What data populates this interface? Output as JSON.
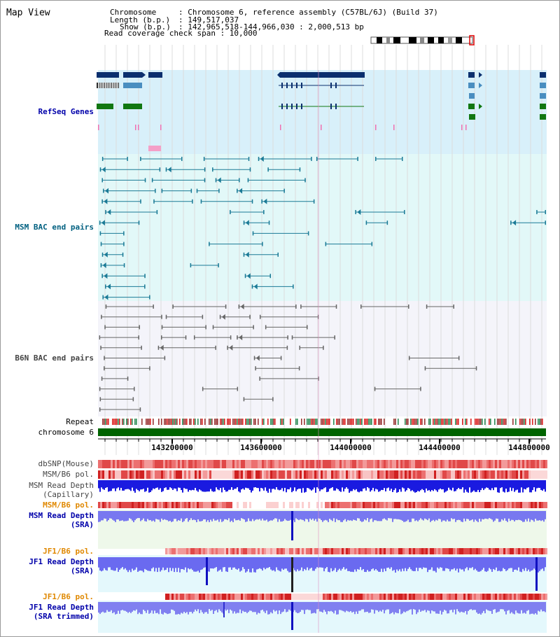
{
  "title": "Map View",
  "info": {
    "chromosome_key": "Chromosome",
    "chromosome_value": ": Chromosome 6, reference assembly (C57BL/6J) (Build 37)",
    "length_key": "Length (b.p.)",
    "length_value": ": 149,517,037",
    "show_key": "Show (b.p.)",
    "show_value": ": 142,965,518-144,966,030 : 2,000,513 bp",
    "coverage_line": "Read coverage check span : 10,000"
  },
  "tracks": {
    "refseq": "RefSeq Genes",
    "msm_bac": "MSM BAC end pairs",
    "b6n_bac": "B6N BAC end pairs",
    "repeat": "Repeat",
    "chromosome": "chromosome 6",
    "dbsnp": "dbSNP(Mouse)",
    "msm_b6_pol_1": "MSM/B6 pol.",
    "msm_read_depth_cap_1": "MSM Read Depth",
    "msm_read_depth_cap_2": "(Capillary)",
    "msm_b6_pol_2": "MSM/B6 pol.",
    "msm_read_depth_sra_1": "MSM Read Depth",
    "msm_read_depth_sra_2": "(SRA)",
    "jf1_b6_pol_1": "JF1/B6 pol.",
    "jf1_read_depth_sra_1": "JF1 Read Depth",
    "jf1_read_depth_sra_2": "(SRA)",
    "jf1_b6_pol_2": "JF1/B6 pol.",
    "jf1_read_depth_trim_1": "JF1 Read Depth",
    "jf1_read_depth_trim_2": "(SRA trimmed)"
  },
  "axis_ticks": [
    "143200000",
    "143600000",
    "144000000",
    "144400000",
    "144800000"
  ],
  "colors": {
    "label_black": "#000000",
    "label_blue": "#0000aa",
    "label_teal": "#006080",
    "label_gray": "#444444",
    "label_orange": "#e08800",
    "chromosome_bar": "#006400",
    "refseq_bg": "#d8f0fa",
    "bac_bg": "#e0f8f8"
  }
}
